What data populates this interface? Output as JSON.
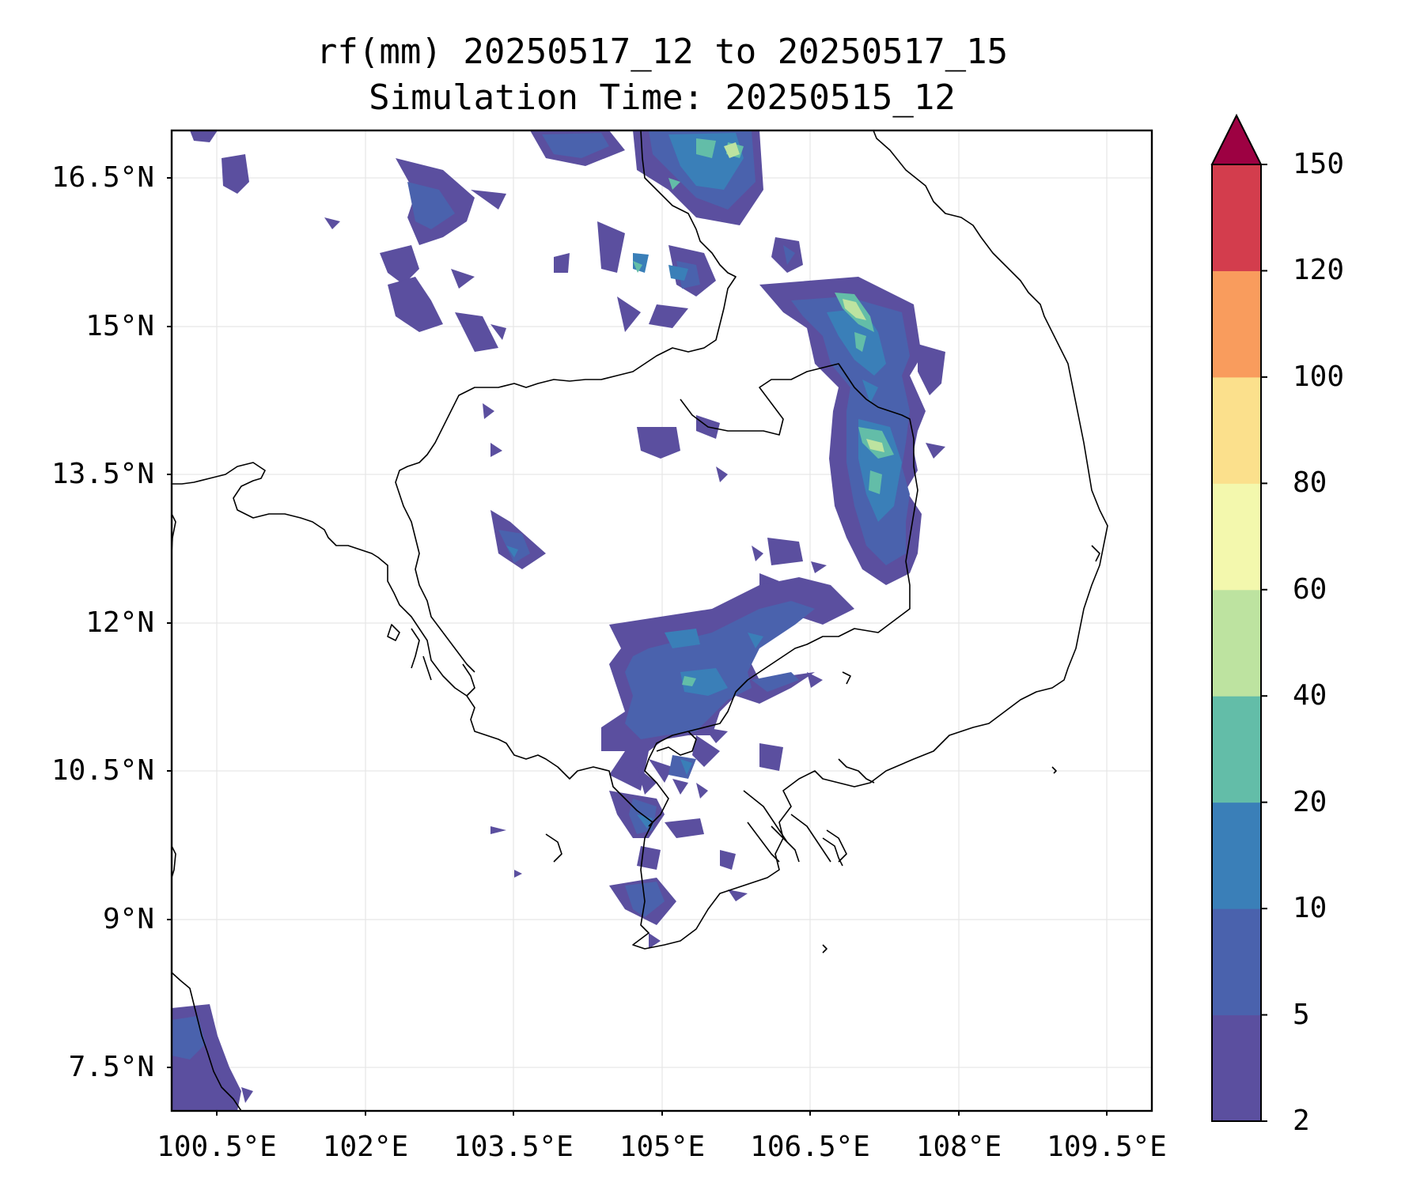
{
  "title_line1": "rf(mm) 20250517_12 to 20250517_15",
  "title_line2": "Simulation Time: 20250515_12",
  "lat_ticks": [
    "16.5°N",
    "15°N",
    "13.5°N",
    "12°N",
    "10.5°N",
    "9°N",
    "7.5°N"
  ],
  "lon_ticks": [
    "100.5°E",
    "102°E",
    "103.5°E",
    "105°E",
    "106.5°E",
    "108°E",
    "109.5°E"
  ],
  "colorbar": {
    "levels": [
      "2",
      "5",
      "10",
      "20",
      "40",
      "60",
      "80",
      "100",
      "120",
      "150"
    ],
    "colors": [
      "#5b4f9f",
      "#4a62ad",
      "#3a7fb8",
      "#63bda8",
      "#bde3a0",
      "#f3f8ad",
      "#fbe08c",
      "#f99c5d",
      "#d33d4d",
      "#9d0142"
    ],
    "extend": "max"
  },
  "map": {
    "grid": true,
    "lon_range": [
      100.0,
      109.9
    ],
    "lat_range": [
      7.0,
      17.0
    ],
    "coastline_color": "#000000"
  }
}
